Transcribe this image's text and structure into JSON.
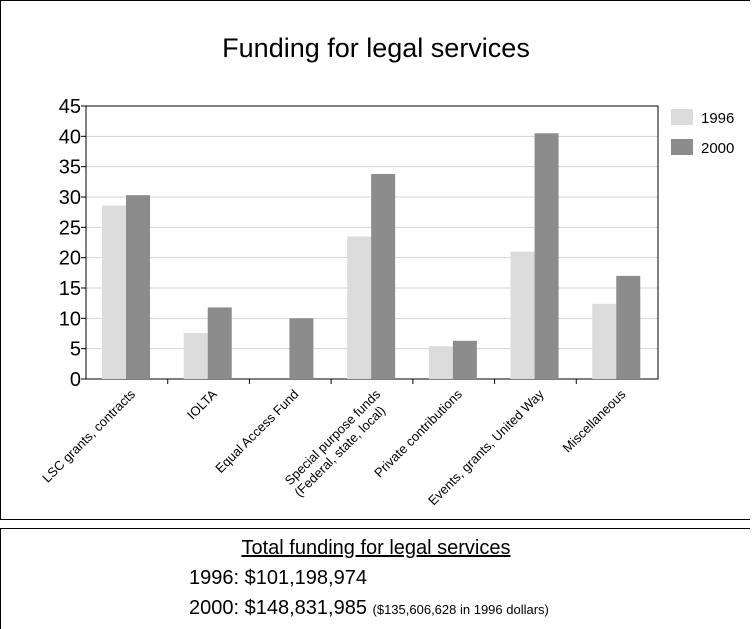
{
  "chart_data": {
    "type": "bar",
    "title": "Funding for legal services",
    "xlabel": "",
    "ylabel": "",
    "ylim": [
      0,
      45
    ],
    "yticks": [
      0,
      5,
      10,
      15,
      20,
      25,
      30,
      35,
      40,
      45
    ],
    "grid": true,
    "legend_position": "right",
    "categories": [
      "LSC grants, contracts",
      "IOLTA",
      "Equal Access Fund",
      "Special purpose funds\n(Federal, state, local)",
      "Private contributions",
      "Events, grants, United Way",
      "Miscellaneous"
    ],
    "series": [
      {
        "name": "1996",
        "color": "#dcdcdc",
        "values": [
          28.6,
          7.6,
          0,
          23.5,
          5.4,
          21.0,
          12.4
        ]
      },
      {
        "name": "2000",
        "color": "#8c8c8c",
        "values": [
          30.3,
          11.8,
          10.0,
          33.8,
          6.3,
          40.5,
          17.0
        ]
      }
    ]
  },
  "totals": {
    "title": "Total funding for legal services",
    "line1": "1996: $101,198,974",
    "line2": "2000: $148,831,985",
    "line2_note": "($135,606,628 in 1996 dollars)"
  }
}
